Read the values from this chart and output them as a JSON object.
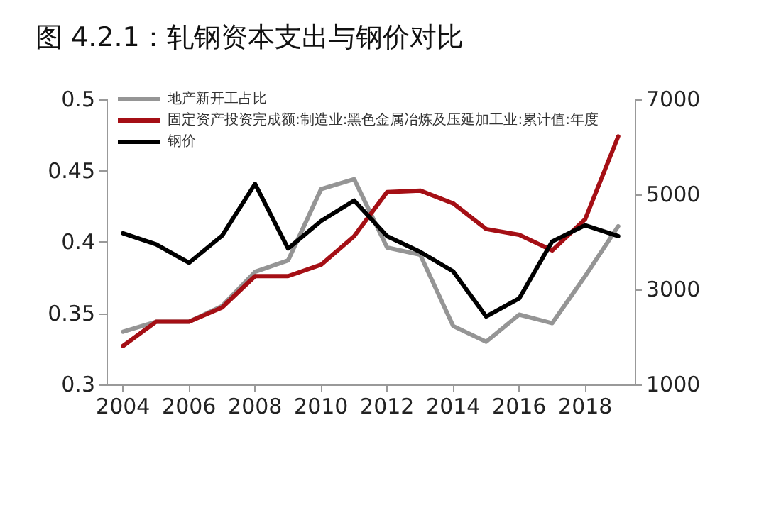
{
  "chart_data": {
    "type": "line",
    "title": "图 4.2.1：轧钢资本支出与钢价对比",
    "x": [
      2004,
      2005,
      2006,
      2007,
      2008,
      2009,
      2010,
      2011,
      2012,
      2013,
      2014,
      2015,
      2016,
      2017,
      2018,
      2019
    ],
    "xlim": [
      2003.5,
      2019.5
    ],
    "xticks": [
      2004,
      2006,
      2008,
      2010,
      2012,
      2014,
      2016,
      2018
    ],
    "ylim": [
      0.3,
      0.5
    ],
    "yticks": [
      0.3,
      0.35,
      0.4,
      0.45,
      0.5
    ],
    "y2lim": [
      1000,
      7000
    ],
    "y2ticks": [
      1000,
      3000,
      5000,
      7000
    ],
    "series": [
      {
        "name": "地产新开工占比",
        "color": "#959595",
        "values": [
          0.337,
          0.344,
          0.344,
          0.355,
          0.379,
          0.387,
          0.437,
          0.444,
          0.396,
          0.391,
          0.341,
          0.33,
          0.349,
          0.343,
          0.376,
          0.411
        ]
      },
      {
        "name": "固定资产投资完成额:制造业:黑色金属冶炼及压延加工业:累计值:年度",
        "color": "#a50f15",
        "values": [
          0.327,
          0.344,
          0.344,
          0.354,
          0.376,
          0.376,
          0.384,
          0.404,
          0.435,
          0.436,
          0.427,
          0.409,
          0.405,
          0.394,
          0.416,
          0.474
        ]
      },
      {
        "name": "钢价",
        "color": "#000000",
        "axis": "y2",
        "values": [
          4180,
          3950,
          3560,
          4130,
          5220,
          3860,
          4440,
          4870,
          4120,
          3790,
          3380,
          2430,
          2810,
          4010,
          4350,
          4120
        ]
      }
    ],
    "legend": "top left",
    "grid": false,
    "marker": "none",
    "line_style": "solid"
  }
}
